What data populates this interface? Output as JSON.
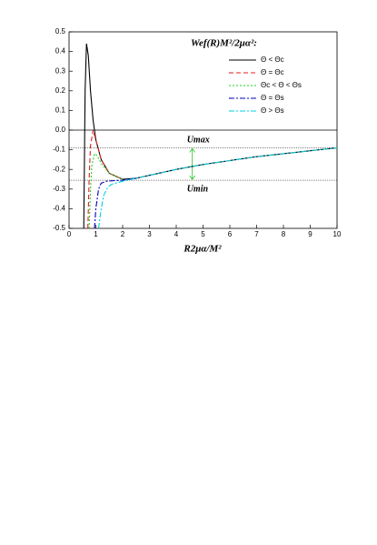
{
  "chart_data": {
    "type": "line",
    "title": "Wef(R)M²/2μα²:",
    "x_label": "R2μα/M²",
    "annotations": [
      "Umax",
      "Umin"
    ],
    "xlim": [
      0,
      10
    ],
    "ylim": [
      -0.5,
      0.5
    ],
    "xticks": [
      0,
      1,
      2,
      3,
      4,
      5,
      6,
      7,
      8,
      9,
      10
    ],
    "yticks": [
      0.5,
      0.4,
      0.3,
      0.2,
      0.1,
      {
        "value": 0,
        "label": "0.0"
      },
      -0.1,
      -0.2,
      -0.3,
      -0.4,
      -0.5
    ],
    "hlines": [
      0,
      -0.09,
      -0.255
    ],
    "series": [
      {
        "name": "Θ < Θc",
        "color": "#000000",
        "dash": "solid",
        "x": [
          0.55,
          0.6,
          0.65,
          0.72,
          0.8,
          0.9,
          1.0,
          1.2,
          1.5,
          2,
          2.5,
          3,
          4,
          5,
          6,
          7,
          8,
          9,
          10
        ],
        "values": [
          -0.5,
          0.2,
          0.44,
          0.38,
          0.2,
          0.05,
          -0.05,
          -0.15,
          -0.22,
          -0.25,
          -0.245,
          -0.23,
          -0.2,
          -0.175,
          -0.155,
          -0.135,
          -0.12,
          -0.105,
          -0.09
        ]
      },
      {
        "name": "Θ = Θc",
        "color": "#e02020",
        "dash": "dashed",
        "x": [
          0.7,
          0.75,
          0.8,
          0.9,
          1.0,
          1.2,
          1.5,
          2
        ],
        "values": [
          -0.5,
          -0.25,
          -0.08,
          0.0,
          -0.05,
          -0.15,
          -0.22,
          -0.25
        ]
      },
      {
        "name": "Θc < Θ < Θs",
        "color": "#20d020",
        "dash": "dotted",
        "x": [
          0.75,
          0.8,
          0.85,
          0.95,
          1.05,
          1.2,
          1.5,
          2
        ],
        "values": [
          -0.5,
          -0.3,
          -0.18,
          -0.12,
          -0.13,
          -0.17,
          -0.22,
          -0.25
        ]
      },
      {
        "name": "Θ = Θs",
        "color": "#0000c0",
        "dash": "dashdot",
        "x": [
          0.95,
          1.0,
          1.1,
          1.2,
          1.4,
          1.7,
          2,
          2.5
        ],
        "values": [
          -0.5,
          -0.4,
          -0.3,
          -0.27,
          -0.26,
          -0.257,
          -0.255,
          -0.245
        ]
      },
      {
        "name": "Θ > Θs",
        "color": "#00d0e0",
        "dash": "dashdot",
        "x": [
          1.1,
          1.2,
          1.3,
          1.45,
          1.6,
          2,
          2.5,
          3,
          4,
          5,
          6,
          7,
          8,
          9,
          10
        ],
        "values": [
          -0.5,
          -0.4,
          -0.33,
          -0.29,
          -0.275,
          -0.26,
          -0.245,
          -0.23,
          -0.2,
          -0.175,
          -0.155,
          -0.135,
          -0.12,
          -0.105,
          -0.09
        ]
      }
    ]
  }
}
